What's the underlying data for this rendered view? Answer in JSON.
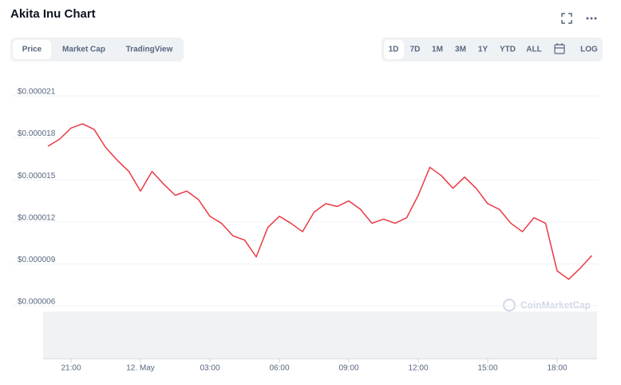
{
  "ui": {
    "tabs": [
      "Price",
      "Market Cap",
      "TradingView"
    ],
    "ranges": [
      "1D",
      "7D",
      "1M",
      "3M",
      "1Y",
      "YTD",
      "ALL"
    ],
    "log": "LOG",
    "watermark": "CoinMarketCap"
  },
  "chart_data": {
    "type": "line",
    "title": "Akita Inu Chart",
    "x": [
      "20:00",
      "20:30",
      "21:00",
      "21:30",
      "22:00",
      "22:30",
      "23:00",
      "23:30",
      "00:00",
      "00:30",
      "01:00",
      "01:30",
      "02:00",
      "02:30",
      "03:00",
      "03:30",
      "04:00",
      "04:30",
      "05:00",
      "05:30",
      "06:00",
      "06:30",
      "07:00",
      "07:30",
      "08:00",
      "08:30",
      "09:00",
      "09:30",
      "10:00",
      "10:30",
      "11:00",
      "11:30",
      "12:00",
      "12:30",
      "13:00",
      "13:30",
      "14:00",
      "14:30",
      "15:00",
      "15:30",
      "16:00",
      "16:30",
      "17:00",
      "17:30",
      "18:00",
      "18:30",
      "19:00",
      "19:30"
    ],
    "series": [
      {
        "name": "Price",
        "color": "#ea3943",
        "values": [
          1.74e-05,
          1.79e-05,
          1.87e-05,
          1.9e-05,
          1.86e-05,
          1.73e-05,
          1.64e-05,
          1.56e-05,
          1.42e-05,
          1.56e-05,
          1.47e-05,
          1.39e-05,
          1.42e-05,
          1.36e-05,
          1.24e-05,
          1.19e-05,
          1.1e-05,
          1.07e-05,
          9.5e-06,
          1.16e-05,
          1.24e-05,
          1.19e-05,
          1.13e-05,
          1.27e-05,
          1.33e-05,
          1.31e-05,
          1.35e-05,
          1.29e-05,
          1.19e-05,
          1.22e-05,
          1.19e-05,
          1.23e-05,
          1.39e-05,
          1.59e-05,
          1.53e-05,
          1.44e-05,
          1.52e-05,
          1.44e-05,
          1.33e-05,
          1.29e-05,
          1.19e-05,
          1.13e-05,
          1.23e-05,
          1.19e-05,
          8.5e-06,
          7.9e-06,
          8.7e-06,
          9.6e-06
        ]
      }
    ],
    "ylim": [
      6e-06,
      2.1e-05
    ],
    "yticks": [
      {
        "value": 2.1e-05,
        "label": "$0.000021"
      },
      {
        "value": 1.8e-05,
        "label": "$0.000018"
      },
      {
        "value": 1.5e-05,
        "label": "$0.000015"
      },
      {
        "value": 1.2e-05,
        "label": "$0.000012"
      },
      {
        "value": 9e-06,
        "label": "$0.000009"
      },
      {
        "value": 6e-06,
        "label": "$0.000006"
      }
    ],
    "xticks": [
      "21:00",
      {
        "value": "00:00",
        "label": "12. May"
      },
      "03:00",
      "06:00",
      "09:00",
      "12:00",
      "15:00",
      "18:00"
    ],
    "grid": true
  }
}
